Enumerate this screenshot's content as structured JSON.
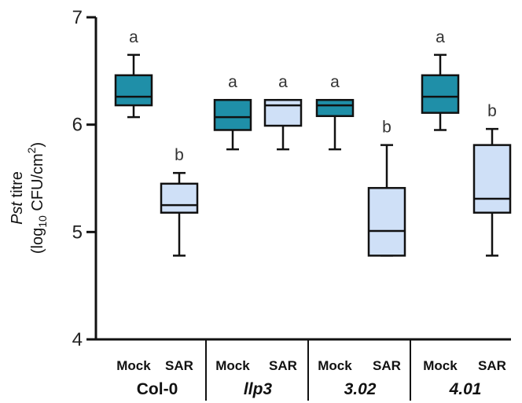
{
  "colors": {
    "mock": "#1f8fa8",
    "sar": "#cfe0f7",
    "stroke": "#111111"
  },
  "chart_data": {
    "type": "box",
    "ylabel_line1_italic": "Pst",
    "ylabel_line1_rest": " titre",
    "ylabel_line2_prefix": "(log",
    "ylabel_line2_sub": "10",
    "ylabel_line2_mid": " CFU/cm",
    "ylabel_line2_sup": "2",
    "ylabel_line2_suffix": ")",
    "ylim": [
      4,
      7
    ],
    "yticks": [
      4,
      5,
      6,
      7
    ],
    "grid": false,
    "groups": [
      {
        "label": "Col-0",
        "italic": false,
        "boxes": [
          {
            "category": "Mock",
            "min": 6.07,
            "q1": 6.18,
            "median": 6.26,
            "q3": 6.46,
            "max": 6.65,
            "letter": "a"
          },
          {
            "category": "SAR",
            "min": 4.78,
            "q1": 5.18,
            "median": 5.25,
            "q3": 5.45,
            "max": 5.55,
            "letter": "b"
          }
        ]
      },
      {
        "label": "llp3",
        "italic": true,
        "boxes": [
          {
            "category": "Mock",
            "min": 5.77,
            "q1": 5.95,
            "median": 6.07,
            "q3": 6.23,
            "max": 6.23,
            "letter": "a"
          },
          {
            "category": "SAR",
            "min": 5.77,
            "q1": 5.99,
            "median": 6.18,
            "q3": 6.23,
            "max": 6.23,
            "letter": "a"
          }
        ]
      },
      {
        "label": "3.02",
        "italic": true,
        "boxes": [
          {
            "category": "Mock",
            "min": 5.77,
            "q1": 6.08,
            "median": 6.18,
            "q3": 6.23,
            "max": 6.23,
            "letter": "a"
          },
          {
            "category": "SAR",
            "min": 4.78,
            "q1": 4.78,
            "median": 5.01,
            "q3": 5.41,
            "max": 5.81,
            "letter": "b"
          }
        ]
      },
      {
        "label": "4.01",
        "italic": true,
        "boxes": [
          {
            "category": "Mock",
            "min": 5.95,
            "q1": 6.11,
            "median": 6.26,
            "q3": 6.46,
            "max": 6.65,
            "letter": "a"
          },
          {
            "category": "SAR",
            "min": 4.78,
            "q1": 5.18,
            "median": 5.31,
            "q3": 5.81,
            "max": 5.96,
            "letter": "b"
          }
        ]
      }
    ]
  }
}
